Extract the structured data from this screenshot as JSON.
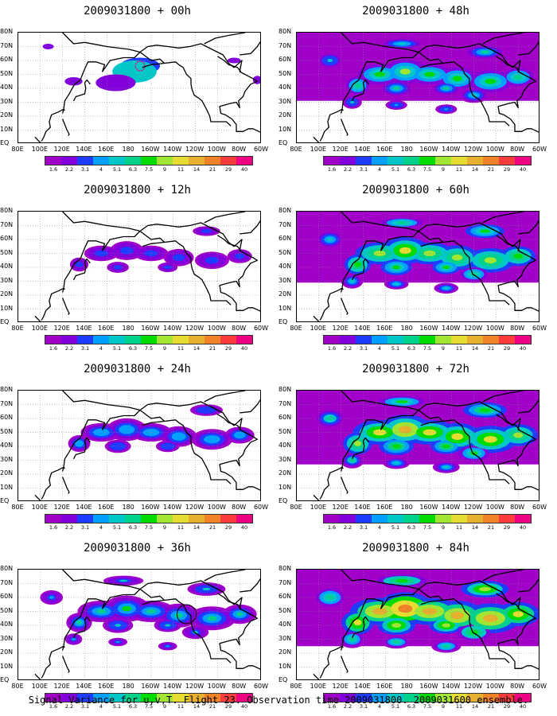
{
  "footer": "Signal Variance for u,v,T. Flight 23. Observation time 2009031800. 2009031600 ensemble.",
  "colorbar": {
    "colors": [
      "#a000c8",
      "#8200dc",
      "#1e3cff",
      "#00a0ff",
      "#00c8c8",
      "#00d28c",
      "#00dc00",
      "#a0e632",
      "#e6dc32",
      "#e6af2d",
      "#f08228",
      "#fa3c3c",
      "#f00082"
    ],
    "labels": [
      "1.6",
      "2.2",
      "3.1",
      "4",
      "5.1",
      "6.3",
      "7.5",
      "9",
      "11",
      "14",
      "21",
      "29",
      "40"
    ]
  },
  "axes": {
    "lat_labels": [
      "80N",
      "70N",
      "60N",
      "50N",
      "40N",
      "30N",
      "20N",
      "10N",
      "EQ"
    ],
    "lon_labels": [
      "80E",
      "100E",
      "120E",
      "140E",
      "160E",
      "180",
      "160W",
      "140W",
      "120W",
      "100W",
      "80W",
      "60W"
    ],
    "lon_range": [
      80,
      300
    ],
    "lat_range": [
      0,
      80
    ],
    "grid": true
  },
  "chart_data": [
    {
      "type": "heatmap",
      "title": "2009031800 + 00h",
      "level": 0,
      "lead_hours": 0
    },
    {
      "type": "heatmap",
      "title": "2009031800 + 48h",
      "level": 4,
      "lead_hours": 48
    },
    {
      "type": "heatmap",
      "title": "2009031800 + 12h",
      "level": 1,
      "lead_hours": 12
    },
    {
      "type": "heatmap",
      "title": "2009031800 + 60h",
      "level": 5,
      "lead_hours": 60
    },
    {
      "type": "heatmap",
      "title": "2009031800 + 24h",
      "level": 2,
      "lead_hours": 24
    },
    {
      "type": "heatmap",
      "title": "2009031800 + 72h",
      "level": 6,
      "lead_hours": 72
    },
    {
      "type": "heatmap",
      "title": "2009031800 + 36h",
      "level": 3,
      "lead_hours": 36
    },
    {
      "type": "heatmap",
      "title": "2009031800 + 84h",
      "level": 7,
      "lead_hours": 84
    }
  ]
}
